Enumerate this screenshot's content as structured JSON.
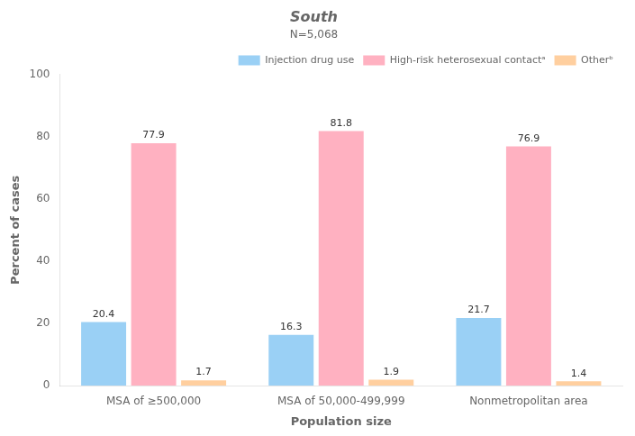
{
  "chart_data": {
    "type": "bar",
    "title": "South",
    "subtitle": "N=5,068",
    "categories": [
      "MSA of ≥500,000",
      "MSA of 50,000-499,999",
      "Nonmetropolitan area"
    ],
    "series": [
      {
        "name": "Injection drug use",
        "values": [
          20.4,
          16.3,
          21.7
        ]
      },
      {
        "name": "High-risk heterosexual contactᵃ",
        "values": [
          77.9,
          81.8,
          76.9
        ]
      },
      {
        "name": "Otherᵇ",
        "values": [
          1.7,
          1.9,
          1.4
        ]
      }
    ],
    "xlabel": "Population size",
    "ylabel": "Percent of cases",
    "ylim": [
      0,
      100
    ],
    "yticks": [
      0,
      20,
      40,
      60,
      80,
      100
    ],
    "grid": false,
    "legend": "upper right",
    "data_labels": true
  }
}
